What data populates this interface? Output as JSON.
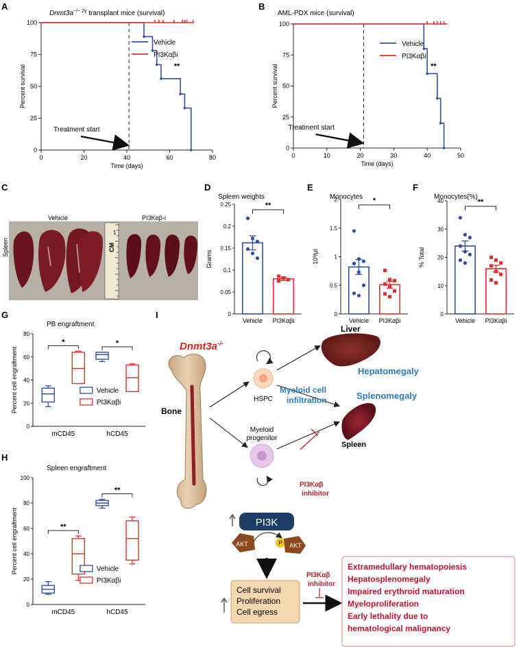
{
  "colors": {
    "vehicle": "#2f4fa3",
    "pi3k": "#e0312c",
    "dark_red": "#b0232a",
    "blue_text": "#2b7bbf",
    "pi3k_box": "#1d3f66",
    "akt": "#8a4a1e",
    "cell_box": "#f5d7b0",
    "outcome_text": "#c8102e"
  },
  "panelA": {
    "letter": "A",
    "title_italic": "Dnmt3a",
    "title_sup": "−/− 2γ",
    "title_rest": " transplant mice (survival)",
    "ylabel": "Percent survival",
    "xlabel": "Time (days)",
    "annotation": "Treatment start",
    "stars": "**",
    "legend": [
      "Vehicle",
      "PI3Kαβi"
    ]
  },
  "panelB": {
    "letter": "B",
    "title": "AML-PDX mice (survival)",
    "ylabel": "Percent survival",
    "xlabel": "Time (days)",
    "annotation": "Treatment start",
    "stars": "**",
    "legend": [
      "Vehicle",
      "PI3Kαβi"
    ]
  },
  "panelC": {
    "letter": "C",
    "side_label": "Spleen",
    "left_label": "Vehicle",
    "right_label": "PI3Kαβ-i",
    "ruler_text": "CM",
    "ruler_number": "1"
  },
  "panelD": {
    "letter": "D",
    "title": "Spleen weights",
    "ylabel": "Grams",
    "stars": "**",
    "categories": [
      "Vehicle",
      "PI3Kαβi"
    ]
  },
  "panelE": {
    "letter": "E",
    "title": "Monocytes",
    "ylabel": "10³/µl",
    "stars": "*",
    "categories": [
      "Vehicle",
      "PI3Kαβi"
    ]
  },
  "panelF": {
    "letter": "F",
    "title": "Monocytes(%)",
    "ylabel": "% Total",
    "stars": "**",
    "categories": [
      "Vehicle",
      "PI3Kαβi"
    ]
  },
  "panelG": {
    "letter": "G",
    "title": "PB engraftment",
    "ylabel": "Percent cell engraftment",
    "stars": [
      "*",
      "*"
    ],
    "categories": [
      "mCD45",
      "hCD45"
    ],
    "legend": [
      "Vehicle",
      "PI3Kαβi"
    ]
  },
  "panelH": {
    "letter": "H",
    "title": "Spleen engraftment",
    "ylabel": "Percent cell engraftment",
    "stars": [
      "**",
      "**"
    ],
    "categories": [
      "mCD45",
      "hCD45"
    ],
    "legend": [
      "Vehicle",
      "PI3Kαβi"
    ]
  },
  "panelI": {
    "letter": "I",
    "gene": "Dnmt3a",
    "gene_sup": "-/-",
    "bone": "Bone",
    "hspc": "HSPC",
    "myeloid_progenitor": "Myeloid progenitor",
    "liver": "Liver",
    "hepatomegaly": "Hepatomegaly",
    "myeloid_infiltration": "Myeloid cell infiltration",
    "splenomegaly": "Splenomegaly",
    "spleen": "Spleen",
    "inhibitor1": "PI3Kαβ inhibitor",
    "pi3k": "PI3K",
    "akt": "AKT",
    "p": "P",
    "cell_box": [
      "Cell survival",
      "Proliferation",
      "Cell egress"
    ],
    "inhibitor2": "PI3Kαβ inhibitor",
    "outcomes": [
      "Extramedullary hematopoiesis",
      "Hepatosplenomegaly",
      "Impaired erythroid maturation",
      "Myeloproliferation",
      "Early lethality due to",
      "hematological malignancy"
    ]
  },
  "chart_data": [
    {
      "panel": "A",
      "type": "line",
      "title": "Dnmt3a−/− 2γ transplant mice (survival)",
      "xlabel": "Time (days)",
      "ylabel": "Percent survival",
      "xlim": [
        0,
        80
      ],
      "ylim": [
        0,
        100
      ],
      "xticks": [
        0,
        20,
        40,
        60,
        80
      ],
      "yticks": [
        0,
        25,
        50,
        75,
        100
      ],
      "treatment_start": 41,
      "series": [
        {
          "name": "Vehicle",
          "x": [
            0,
            48,
            48,
            52,
            52,
            54,
            54,
            56,
            56,
            65,
            65,
            67,
            67,
            70,
            70
          ],
          "y": [
            100,
            100,
            89,
            89,
            78,
            78,
            67,
            67,
            56,
            56,
            44,
            44,
            33,
            33,
            0
          ]
        },
        {
          "name": "PI3Kαβi",
          "x": [
            0,
            71
          ],
          "y": [
            100,
            100
          ],
          "censor_x": [
            53,
            55,
            57,
            62,
            66,
            67,
            68,
            71
          ]
        }
      ]
    },
    {
      "panel": "B",
      "type": "line",
      "title": "AML-PDX mice (survival)",
      "xlabel": "Time (days)",
      "ylabel": "Percent survival",
      "xlim": [
        0,
        50
      ],
      "ylim": [
        0,
        100
      ],
      "xticks": [
        0,
        10,
        20,
        30,
        40,
        50
      ],
      "yticks": [
        0,
        25,
        50,
        75,
        100
      ],
      "treatment_start": 21,
      "series": [
        {
          "name": "Vehicle",
          "x": [
            0,
            39,
            39,
            40,
            40,
            43,
            43,
            44,
            44,
            45,
            45
          ],
          "y": [
            100,
            100,
            80,
            80,
            60,
            60,
            40,
            40,
            20,
            20,
            0
          ]
        },
        {
          "name": "PI3Kαβi",
          "x": [
            0,
            46
          ],
          "y": [
            100,
            100
          ],
          "censor_x": [
            40,
            42,
            43,
            44,
            45
          ]
        }
      ]
    },
    {
      "panel": "D",
      "type": "bar",
      "title": "Spleen weights",
      "ylabel": "Grams",
      "ylim": [
        0,
        0.25
      ],
      "yticks": [
        0,
        0.05,
        0.1,
        0.15,
        0.2,
        0.25
      ],
      "categories": [
        "Vehicle",
        "PI3Kαβi"
      ],
      "values": [
        0.162,
        0.08
      ],
      "sem": [
        0.016,
        0.004
      ],
      "points": [
        [
          0.218,
          0.172,
          0.165,
          0.148,
          0.138,
          0.127
        ],
        [
          0.086,
          0.082,
          0.078,
          0.075
        ]
      ]
    },
    {
      "panel": "E",
      "type": "bar",
      "title": "Monocytes",
      "ylabel": "10³/µl",
      "ylim": [
        0,
        2.0
      ],
      "yticks": [
        0,
        0.5,
        1.0,
        1.5,
        2.0
      ],
      "categories": [
        "Vehicle",
        "PI3Kαβi"
      ],
      "values": [
        0.82,
        0.51
      ],
      "sem": [
        0.13,
        0.06
      ],
      "points": [
        [
          1.45,
          0.96,
          0.92,
          0.88,
          0.73,
          0.5,
          0.36,
          0.32
        ],
        [
          0.76,
          0.6,
          0.58,
          0.52,
          0.48,
          0.4,
          0.35,
          0.3
        ]
      ]
    },
    {
      "panel": "F",
      "type": "bar",
      "title": "Monocytes(%)",
      "ylabel": "% Total",
      "ylim": [
        0,
        40
      ],
      "yticks": [
        0,
        10,
        20,
        30,
        40
      ],
      "categories": [
        "Vehicle",
        "PI3Kαβi"
      ],
      "values": [
        24,
        16
      ],
      "sem": [
        1.8,
        1.2
      ],
      "points": [
        [
          34,
          28,
          27,
          24,
          22,
          21,
          19,
          18
        ],
        [
          20,
          19,
          18,
          17,
          15,
          14,
          12,
          11
        ]
      ]
    },
    {
      "panel": "G",
      "type": "box",
      "title": "PB engraftment",
      "ylabel": "Percent cell engraftment",
      "ylim": [
        0,
        80
      ],
      "yticks": [
        0,
        20,
        40,
        60,
        80
      ],
      "categories": [
        "mCD45",
        "hCD45"
      ],
      "series": [
        {
          "name": "Vehicle",
          "boxes": [
            {
              "min": 17,
              "q1": 21,
              "median": 28,
              "q3": 33,
              "max": 35
            },
            {
              "min": 56,
              "q1": 58,
              "median": 62,
              "q3": 64,
              "max": 64
            }
          ]
        },
        {
          "name": "PI3Kαβi",
          "boxes": [
            {
              "min": 37,
              "q1": 37,
              "median": 50,
              "q3": 64,
              "max": 65
            },
            {
              "min": 30,
              "q1": 30,
              "median": 42,
              "q3": 53,
              "max": 54
            }
          ]
        }
      ]
    },
    {
      "panel": "H",
      "type": "box",
      "title": "Spleen engraftment",
      "ylabel": "Percent cell engraftment",
      "ylim": [
        0,
        100
      ],
      "yticks": [
        0,
        20,
        40,
        60,
        80,
        100
      ],
      "categories": [
        "mCD45",
        "hCD45"
      ],
      "series": [
        {
          "name": "Vehicle",
          "boxes": [
            {
              "min": 8,
              "q1": 9,
              "median": 12,
              "q3": 15,
              "max": 18
            },
            {
              "min": 76,
              "q1": 78,
              "median": 80,
              "q3": 82,
              "max": 83
            }
          ]
        },
        {
          "name": "PI3Kαβi",
          "boxes": [
            {
              "min": 19,
              "q1": 24,
              "median": 40,
              "q3": 52,
              "max": 54
            },
            {
              "min": 32,
              "q1": 35,
              "median": 52,
              "q3": 66,
              "max": 69
            }
          ]
        }
      ]
    }
  ]
}
